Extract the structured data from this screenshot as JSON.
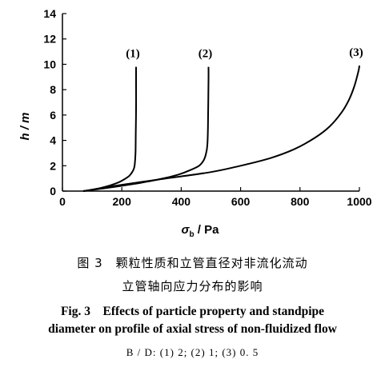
{
  "chart_data": {
    "type": "line",
    "title": "",
    "xlabel": "σ_b / Pa",
    "xlabel_main": "σ",
    "xlabel_sub": "b",
    "xlabel_unit": " / Pa",
    "ylabel": "h / m",
    "xlim": [
      0,
      1000
    ],
    "ylim": [
      0,
      14
    ],
    "xticks": [
      "0",
      "200",
      "400",
      "600",
      "800",
      "1000"
    ],
    "yticks": [
      "0",
      "2",
      "4",
      "6",
      "8",
      "10",
      "12",
      "14"
    ],
    "grid": false,
    "series": [
      {
        "name": "(1)",
        "x": [
          70,
          120,
          160,
          190,
          210,
          225,
          235,
          241,
          244,
          246,
          247,
          248,
          248,
          248
        ],
        "y": [
          0,
          0.2,
          0.45,
          0.7,
          0.95,
          1.2,
          1.5,
          1.8,
          2.2,
          3,
          4.5,
          6.5,
          8.5,
          9.8
        ]
      },
      {
        "name": "(2)",
        "x": [
          70,
          150,
          250,
          330,
          390,
          430,
          460,
          475,
          483,
          488,
          490,
          491,
          492,
          492
        ],
        "y": [
          0,
          0.25,
          0.6,
          0.95,
          1.3,
          1.65,
          2.0,
          2.4,
          2.9,
          3.6,
          5,
          7,
          8.8,
          9.8
        ]
      },
      {
        "name": "(3)",
        "x": [
          70,
          200,
          350,
          500,
          600,
          700,
          780,
          850,
          900,
          940,
          965,
          982,
          992,
          998,
          1000
        ],
        "y": [
          0,
          0.5,
          1.0,
          1.5,
          2.0,
          2.6,
          3.3,
          4.2,
          5.1,
          6.2,
          7.2,
          8.2,
          9.0,
          9.6,
          9.9
        ]
      }
    ]
  },
  "caption": {
    "zh_line1": "图 3　颗粒性质和立管直径对非流化流动",
    "zh_line2": "立管轴向应力分布的影响",
    "en_line1": "Fig. 3　Effects of particle property and standpipe",
    "en_line2": "diameter on profile of axial stress of non-fluidized flow",
    "note": "B / D:  (1)  2;  (2)  1;  (3)  0. 5"
  }
}
